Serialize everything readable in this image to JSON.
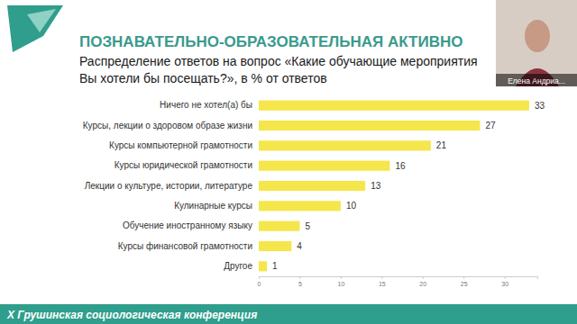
{
  "chart_data": {
    "type": "bar",
    "orientation": "horizontal",
    "title": "ПОЗНАВАТЕЛЬНО-ОБРАЗОВАТЕЛЬНАЯ АКТИВНО",
    "subtitle": [
      "Распределение ответов на вопрос «Какие обучающие мероприятия",
      "Вы хотели бы посещать?», в % от ответов"
    ],
    "categories": [
      "Ничего не хотел(а) бы",
      "Курсы, лекции о здоровом образе жизни",
      "Курсы компьютерной грамотности",
      "Курсы юридической грамотности",
      "Лекции о культуре, истории, литературе",
      "Кулинарные курсы",
      "Обучение иностранному языку",
      "Курсы финансовой грамотности",
      "Другое"
    ],
    "values": [
      33,
      27,
      21,
      16,
      13,
      10,
      5,
      4,
      1
    ],
    "color": "#f5e64b",
    "xlim": [
      0,
      34
    ],
    "xticks": [
      0,
      5,
      10,
      15,
      20,
      25,
      30
    ],
    "grid": false,
    "data_labels": true,
    "annotations": [
      "Елена Андриа...",
      "X Грушинская социологическая конференция"
    ]
  }
}
